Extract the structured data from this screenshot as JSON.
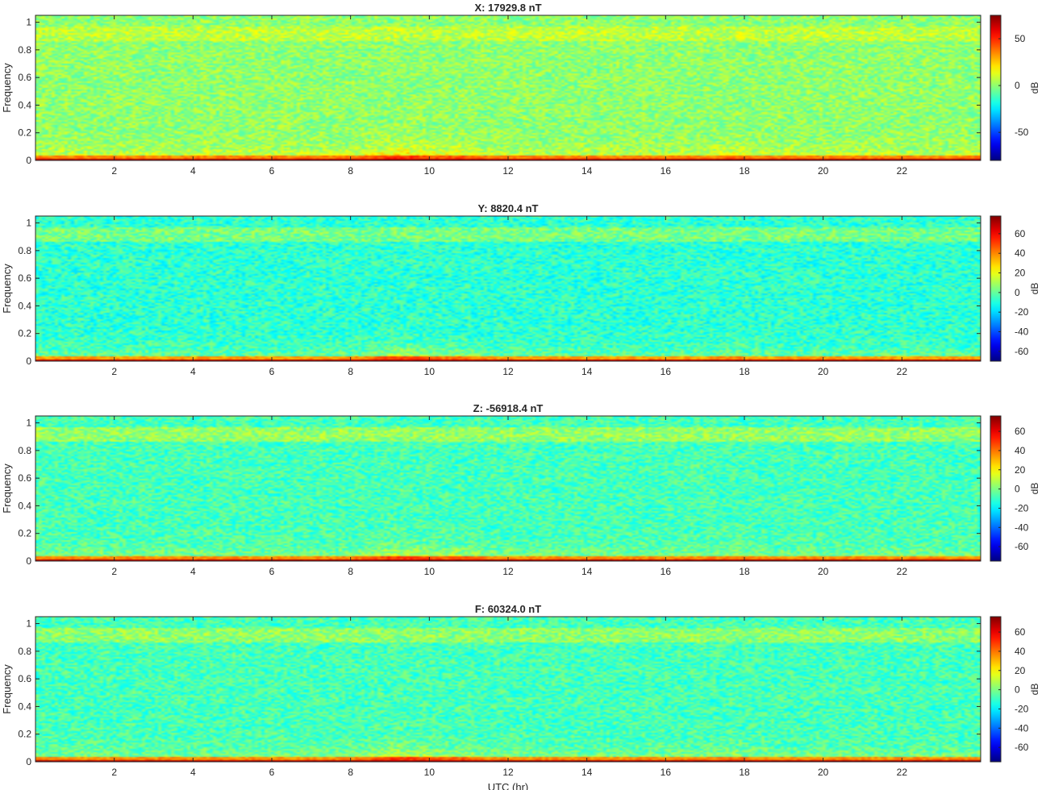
{
  "chart_data": [
    {
      "type": "heatmap",
      "title": "X: 17929.8 nT",
      "ylabel": "Frequency",
      "xlabel": "",
      "xlim": [
        0,
        24
      ],
      "ylim": [
        0,
        1.05
      ],
      "x_ticks": [
        "2",
        "4",
        "6",
        "8",
        "10",
        "12",
        "14",
        "16",
        "18",
        "20",
        "22"
      ],
      "y_ticks": [
        "0",
        "0.2",
        "0.4",
        "0.6",
        "0.8",
        "1"
      ],
      "colorbar": {
        "label": "dB",
        "clim": [
          -80,
          75
        ],
        "ticks": [
          "50",
          "0",
          "-50"
        ],
        "tick_values": [
          50,
          0,
          -50
        ]
      },
      "background_db": 0,
      "upper_band_db": 8,
      "low_freq_peak_db": 70
    },
    {
      "type": "heatmap",
      "title": "Y: 8820.4 nT",
      "ylabel": "Frequency",
      "xlabel": "",
      "xlim": [
        0,
        24
      ],
      "ylim": [
        0,
        1.05
      ],
      "x_ticks": [
        "2",
        "4",
        "6",
        "8",
        "10",
        "12",
        "14",
        "16",
        "18",
        "20",
        "22"
      ],
      "y_ticks": [
        "0",
        "0.2",
        "0.4",
        "0.6",
        "0.8",
        "1"
      ],
      "colorbar": {
        "label": "dB",
        "clim": [
          -70,
          78
        ],
        "ticks": [
          "60",
          "40",
          "20",
          "0",
          "-20",
          "-40",
          "-60"
        ],
        "tick_values": [
          60,
          40,
          20,
          0,
          -20,
          -40,
          -60
        ]
      },
      "background_db": -8,
      "upper_band_db": 4,
      "low_freq_peak_db": 72
    },
    {
      "type": "heatmap",
      "title": "Z: -56918.4 nT",
      "ylabel": "Frequency",
      "xlabel": "",
      "xlim": [
        0,
        24
      ],
      "ylim": [
        0,
        1.05
      ],
      "x_ticks": [
        "2",
        "4",
        "6",
        "8",
        "10",
        "12",
        "14",
        "16",
        "18",
        "20",
        "22"
      ],
      "y_ticks": [
        "0",
        "0.2",
        "0.4",
        "0.6",
        "0.8",
        "1"
      ],
      "colorbar": {
        "label": "dB",
        "clim": [
          -75,
          76
        ],
        "ticks": [
          "60",
          "40",
          "20",
          "0",
          "-20",
          "-40",
          "-60"
        ],
        "tick_values": [
          60,
          40,
          20,
          0,
          -20,
          -40,
          -60
        ]
      },
      "background_db": -8,
      "upper_band_db": 5,
      "low_freq_peak_db": 72
    },
    {
      "type": "heatmap",
      "title": "F: 60324.0 nT",
      "ylabel": "Frequency",
      "xlabel": "UTC (hr)",
      "xlim": [
        0,
        24
      ],
      "ylim": [
        0,
        1.05
      ],
      "x_ticks": [
        "2",
        "4",
        "6",
        "8",
        "10",
        "12",
        "14",
        "16",
        "18",
        "20",
        "22"
      ],
      "y_ticks": [
        "0",
        "0.2",
        "0.4",
        "0.6",
        "0.8",
        "1"
      ],
      "colorbar": {
        "label": "dB",
        "clim": [
          -75,
          76
        ],
        "ticks": [
          "60",
          "40",
          "20",
          "0",
          "-20",
          "-40",
          "-60"
        ],
        "tick_values": [
          60,
          40,
          20,
          0,
          -20,
          -40,
          -60
        ]
      },
      "background_db": -8,
      "upper_band_db": 4,
      "low_freq_peak_db": 72
    }
  ]
}
